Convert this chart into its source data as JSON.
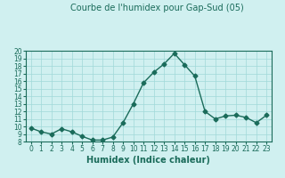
{
  "x": [
    0,
    1,
    2,
    3,
    4,
    5,
    6,
    7,
    8,
    9,
    10,
    11,
    12,
    13,
    14,
    15,
    16,
    17,
    18,
    19,
    20,
    21,
    22,
    23
  ],
  "y": [
    9.8,
    9.3,
    9.0,
    9.7,
    9.3,
    8.7,
    8.2,
    8.2,
    8.6,
    10.5,
    13.0,
    15.8,
    17.2,
    18.3,
    19.7,
    18.2,
    16.7,
    12.0,
    11.0,
    11.4,
    11.5,
    11.2,
    10.5,
    11.5
  ],
  "title": "Courbe de l'humidex pour Gap-Sud (05)",
  "xlabel": "Humidex (Indice chaleur)",
  "ylabel": "",
  "xlim": [
    -0.5,
    23.5
  ],
  "ylim": [
    8,
    20
  ],
  "yticks": [
    8,
    9,
    10,
    11,
    12,
    13,
    14,
    15,
    16,
    17,
    18,
    19,
    20
  ],
  "xticks": [
    0,
    1,
    2,
    3,
    4,
    5,
    6,
    7,
    8,
    9,
    10,
    11,
    12,
    13,
    14,
    15,
    16,
    17,
    18,
    19,
    20,
    21,
    22,
    23
  ],
  "line_color": "#1a6b5a",
  "marker": "D",
  "marker_size": 2.5,
  "bg_color": "#d0f0f0",
  "grid_color": "#a0d8d8",
  "title_fontsize": 7,
  "label_fontsize": 7,
  "tick_fontsize": 5.5
}
